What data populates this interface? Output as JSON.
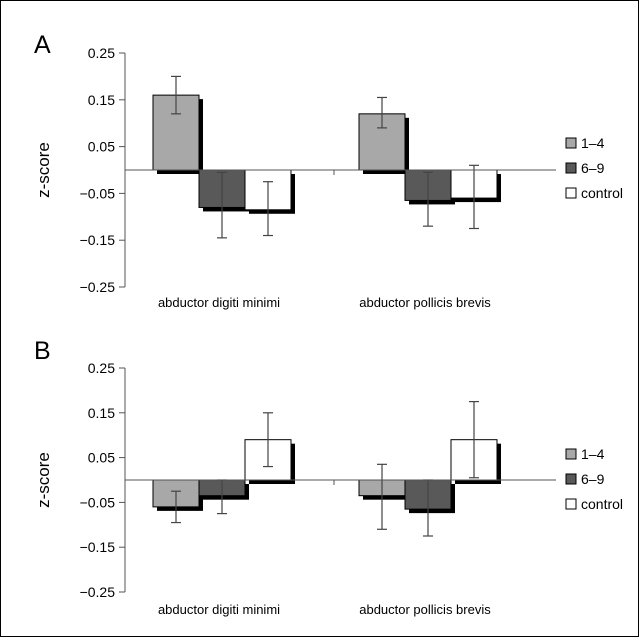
{
  "chart_data": [
    {
      "type": "bar",
      "panel": "A",
      "ylabel": "z-score",
      "ylim": [
        -0.25,
        0.25
      ],
      "yticks": [
        "0.25",
        "0.15",
        "0.05",
        "−0.05",
        "−0.15",
        "−0.25"
      ],
      "yticks_values": [
        0.25,
        0.15,
        0.05,
        -0.05,
        -0.15,
        -0.25
      ],
      "categories": [
        "abductor digiti minimi",
        "abductor pollicis brevis"
      ],
      "series": [
        {
          "name": "1–4",
          "color": "#a8a8a8",
          "values": [
            0.16,
            0.12
          ],
          "err_low": [
            0.12,
            0.09
          ],
          "err_high": [
            0.2,
            0.155
          ]
        },
        {
          "name": "6–9",
          "color": "#595959",
          "values": [
            -0.08,
            -0.065
          ],
          "err_low": [
            -0.145,
            -0.12
          ],
          "err_high": [
            -0.005,
            -0.005
          ]
        },
        {
          "name": "control",
          "color": "#ffffff",
          "values": [
            -0.085,
            -0.06
          ],
          "err_low": [
            -0.14,
            -0.125
          ],
          "err_high": [
            -0.025,
            0.01
          ]
        }
      ],
      "legend_position": "right"
    },
    {
      "type": "bar",
      "panel": "B",
      "ylabel": "z-score",
      "ylim": [
        -0.25,
        0.25
      ],
      "yticks": [
        "0.25",
        "0.15",
        "0.05",
        "−0.05",
        "−0.15",
        "−0.25"
      ],
      "yticks_values": [
        0.25,
        0.15,
        0.05,
        -0.05,
        -0.15,
        -0.25
      ],
      "categories": [
        "abductor digiti minimi",
        "abductor pollicis brevis"
      ],
      "series": [
        {
          "name": "1–4",
          "color": "#a8a8a8",
          "values": [
            -0.06,
            -0.035
          ],
          "err_low": [
            -0.095,
            -0.11
          ],
          "err_high": [
            -0.025,
            0.035
          ]
        },
        {
          "name": "6–9",
          "color": "#595959",
          "values": [
            -0.035,
            -0.065
          ],
          "err_low": [
            -0.075,
            -0.125
          ],
          "err_high": [
            0.0,
            0.0
          ]
        },
        {
          "name": "control",
          "color": "#ffffff",
          "values": [
            0.09,
            0.09
          ],
          "err_low": [
            0.03,
            0.005
          ],
          "err_high": [
            0.15,
            0.175
          ]
        }
      ],
      "legend_position": "right"
    }
  ]
}
